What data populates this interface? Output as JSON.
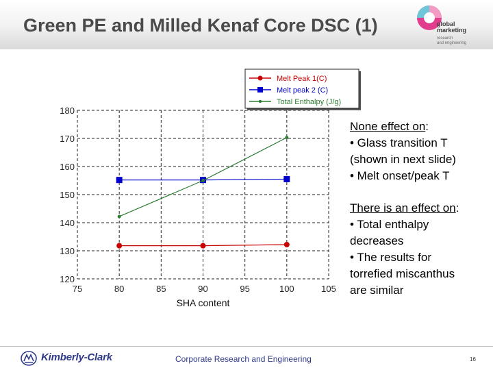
{
  "header": {
    "title": "Green PE and Milled Kenaf Core DSC (1)",
    "logo": {
      "line1": "global",
      "line2": "marketing",
      "line3": "research",
      "line4": "and engineering"
    }
  },
  "chart_data": {
    "type": "line",
    "xlabel": "SHA content",
    "ylabel": "",
    "xlim": [
      75,
      105
    ],
    "ylim": [
      120,
      180
    ],
    "x_ticks": [
      "75",
      "80",
      "85",
      "90",
      "95",
      "100",
      "105"
    ],
    "y_ticks": [
      "120",
      "130",
      "140",
      "150",
      "160",
      "170",
      "180"
    ],
    "grid": "dashed",
    "legend_position": "top",
    "series": [
      {
        "name": "Melt Peak 1(C)",
        "color": "#cc0000",
        "marker": "circle",
        "x": [
          80,
          90,
          100
        ],
        "y": [
          131.8,
          131.8,
          132.2
        ]
      },
      {
        "name": "Melt peak 2 (C)",
        "color": "#0000cc",
        "marker": "square",
        "x": [
          80,
          90,
          100
        ],
        "y": [
          155.2,
          155.2,
          155.5
        ]
      },
      {
        "name": "Total Enthalpy (J/g)",
        "color": "#2e7d32",
        "marker": "dot",
        "x": [
          80,
          90,
          100
        ],
        "y": [
          142.2,
          155.0,
          170.3
        ]
      }
    ]
  },
  "notes": {
    "block1": {
      "heading": "None effect on",
      "suffix": ":",
      "lines": [
        "• Glass transition T",
        "(shown in next slide)",
        "• Melt onset/peak T"
      ]
    },
    "block2": {
      "heading": "There is an effect on",
      "suffix": ":",
      "lines": [
        "• Total enthalpy",
        "decreases",
        "• The results for",
        "torrefied miscanthus",
        "are similar"
      ]
    }
  },
  "footer": {
    "company": "Kimberly-Clark",
    "center_text": "Corporate Research and Engineering",
    "page_number": "16"
  }
}
